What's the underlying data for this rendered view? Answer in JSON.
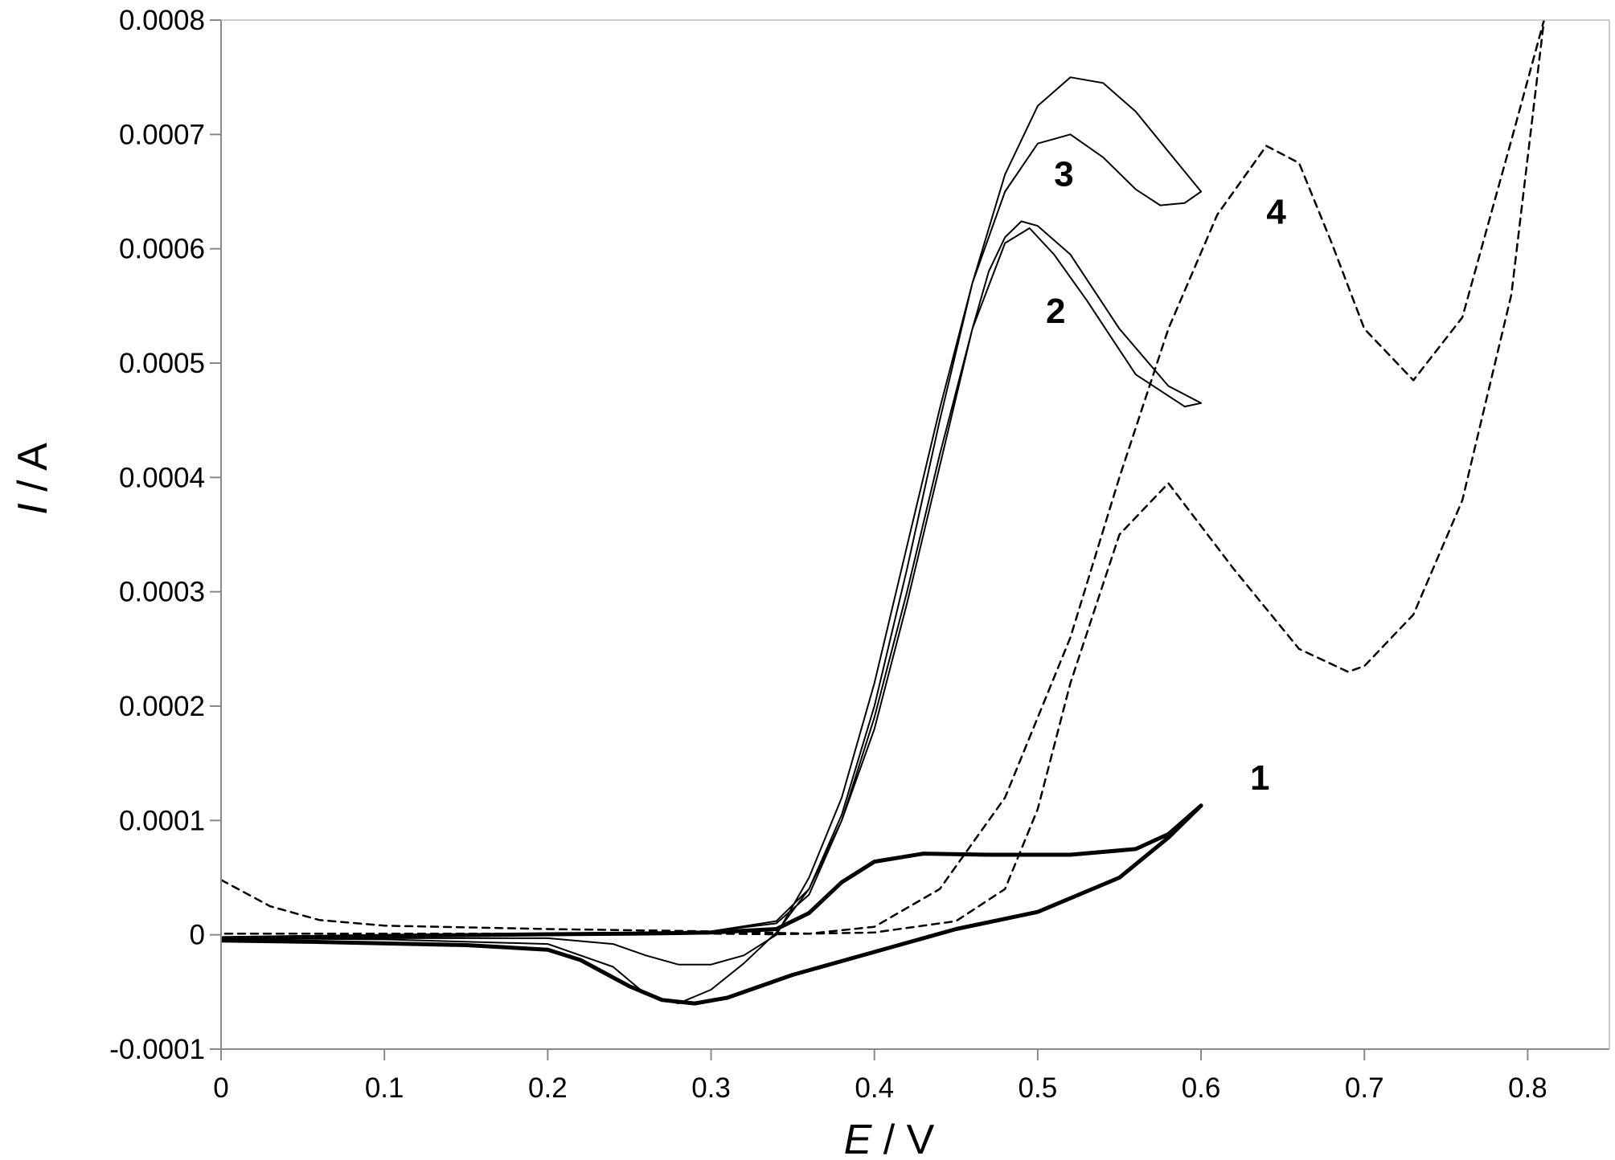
{
  "chart_data": {
    "type": "line",
    "title": "",
    "xlabel": {
      "symbol": "E",
      "unit": " / V"
    },
    "ylabel": {
      "symbol": "I",
      "unit": " / A"
    },
    "xlim": [
      0,
      0.85
    ],
    "ylim": [
      -0.0001,
      0.0008
    ],
    "xticks": [
      "0",
      "0.1",
      "0.2",
      "0.3",
      "0.4",
      "0.5",
      "0.6",
      "0.7",
      "0.8"
    ],
    "yticks": [
      "-0.0001",
      "0",
      "0.0001",
      "0.0002",
      "0.0003",
      "0.0004",
      "0.0005",
      "0.0006",
      "0.0007",
      "0.0008"
    ],
    "grid": false,
    "series": [
      {
        "label": "1",
        "style": "solid-thick",
        "label_at": [
          0.63,
          0.000127
        ],
        "x": [
          0.0,
          0.1,
          0.2,
          0.25,
          0.28,
          0.3,
          0.34,
          0.36,
          0.38,
          0.4,
          0.43,
          0.47,
          0.52,
          0.56,
          0.58,
          0.6,
          0.58,
          0.55,
          0.5,
          0.45,
          0.4,
          0.35,
          0.31,
          0.29,
          0.27,
          0.25,
          0.22,
          0.2,
          0.15,
          0.05,
          0.0
        ],
        "y": [
          -3e-06,
          -1e-06,
          5e-07,
          1e-06,
          1.5e-06,
          2e-06,
          5e-06,
          1.9e-05,
          4.6e-05,
          6.4e-05,
          7.1e-05,
          7e-05,
          7e-05,
          7.5e-05,
          8.8e-05,
          0.000113,
          8.5e-05,
          5e-05,
          2e-05,
          5e-06,
          -1.5e-05,
          -3.5e-05,
          -5.5e-05,
          -6e-05,
          -5.7e-05,
          -4.5e-05,
          -2.2e-05,
          -1.3e-05,
          -9e-06,
          -6e-06,
          -5e-06
        ]
      },
      {
        "label": "2",
        "style": "solid-thin",
        "label_at": [
          0.505,
          0.000535
        ],
        "x": [
          0.0,
          0.1,
          0.2,
          0.3,
          0.34,
          0.36,
          0.38,
          0.4,
          0.42,
          0.44,
          0.46,
          0.47,
          0.48,
          0.49,
          0.5,
          0.52,
          0.55,
          0.58,
          0.6,
          0.59,
          0.56,
          0.53,
          0.51,
          0.495,
          0.48,
          0.46,
          0.44,
          0.42,
          0.4,
          0.38,
          0.36,
          0.34,
          0.32,
          0.3,
          0.28,
          0.26,
          0.24,
          0.2,
          0.1,
          0.0
        ],
        "y": [
          -4e-06,
          -2e-06,
          5e-07,
          3e-06,
          1e-05,
          3.5e-05,
          0.0001,
          0.00019,
          0.0003,
          0.00042,
          0.00053,
          0.00058,
          0.00061,
          0.000624,
          0.00062,
          0.000595,
          0.00053,
          0.00048,
          0.000465,
          0.000462,
          0.00049,
          0.000555,
          0.000595,
          0.000618,
          0.000605,
          0.00053,
          0.00041,
          0.00029,
          0.00018,
          0.0001,
          4e-05,
          2e-06,
          -2.5e-05,
          -4.8e-05,
          -6e-05,
          -5.2e-05,
          -2.8e-05,
          -8e-06,
          -4e-06,
          -3e-06
        ]
      },
      {
        "label": "3",
        "style": "solid-thin",
        "label_at": [
          0.51,
          0.000655
        ],
        "x": [
          0.0,
          0.1,
          0.2,
          0.3,
          0.34,
          0.36,
          0.38,
          0.4,
          0.42,
          0.44,
          0.46,
          0.48,
          0.5,
          0.52,
          0.54,
          0.56,
          0.58,
          0.6,
          0.59,
          0.575,
          0.56,
          0.54,
          0.52,
          0.5,
          0.48,
          0.46,
          0.44,
          0.42,
          0.4,
          0.38,
          0.36,
          0.34,
          0.32,
          0.3,
          0.28,
          0.26,
          0.24,
          0.2,
          0.1,
          0.0
        ],
        "y": [
          -4e-06,
          -2e-06,
          5e-07,
          3e-06,
          1.2e-05,
          4e-05,
          0.000105,
          0.0002,
          0.00032,
          0.00045,
          0.00057,
          0.000665,
          0.000725,
          0.00075,
          0.000745,
          0.00072,
          0.000685,
          0.00065,
          0.00064,
          0.000638,
          0.000652,
          0.00068,
          0.0007,
          0.000692,
          0.00065,
          0.00057,
          0.00046,
          0.00034,
          0.00022,
          0.00012,
          5e-05,
          0.0,
          -1.8e-05,
          -2.6e-05,
          -2.6e-05,
          -1.8e-05,
          -8e-06,
          -3e-06,
          -3e-06,
          -3e-06
        ]
      },
      {
        "label": "4",
        "style": "dashed",
        "label_at": [
          0.64,
          0.000622
        ],
        "x": [
          0.0,
          0.03,
          0.06,
          0.1,
          0.2,
          0.3,
          0.36,
          0.4,
          0.44,
          0.48,
          0.52,
          0.55,
          0.58,
          0.61,
          0.64,
          0.66,
          0.68,
          0.7,
          0.73,
          0.76,
          0.79,
          0.81,
          0.79,
          0.76,
          0.73,
          0.7,
          0.69,
          0.66,
          0.62,
          0.58,
          0.55,
          0.52,
          0.5,
          0.48,
          0.45,
          0.4,
          0.34,
          0.3,
          0.2,
          0.1,
          0.0
        ],
        "y": [
          4.8e-05,
          2.5e-05,
          1.3e-05,
          8e-06,
          5e-06,
          3e-06,
          1e-06,
          7e-06,
          4e-05,
          0.00012,
          0.00026,
          0.0004,
          0.00053,
          0.00063,
          0.00069,
          0.000675,
          0.000605,
          0.00053,
          0.000485,
          0.00054,
          0.000695,
          0.0008,
          0.00056,
          0.00038,
          0.00028,
          0.000235,
          0.00023,
          0.00025,
          0.00032,
          0.000395,
          0.00035,
          0.00022,
          0.00011,
          4e-05,
          1.2e-05,
          2e-06,
          5e-07,
          1e-06,
          1e-06,
          1e-06,
          1e-06
        ]
      }
    ]
  }
}
